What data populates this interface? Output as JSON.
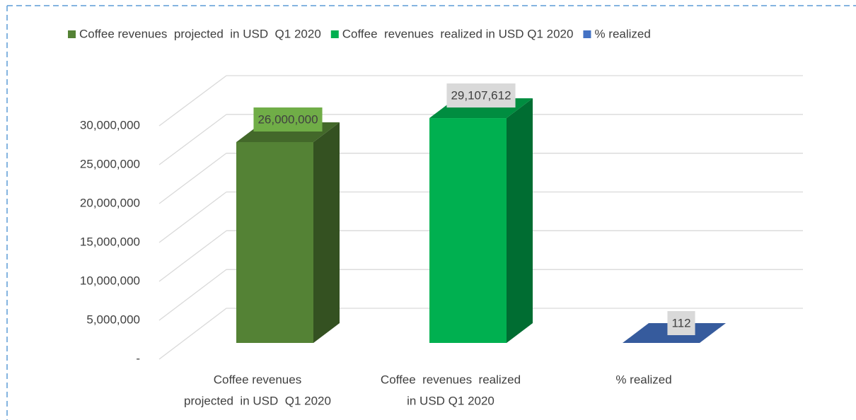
{
  "chart_data": {
    "type": "bar3d",
    "categories": [
      [
        "Coffee revenues",
        "projected  in USD  Q1 2020"
      ],
      [
        "Coffee  revenues  realized",
        "in USD Q1 2020"
      ],
      [
        "% realized"
      ]
    ],
    "series": [
      {
        "name": "Coffee revenues  projected  in USD  Q1 2020",
        "color": "#548235"
      },
      {
        "name": "Coffee  revenues  realized in USD Q1 2020",
        "color": "#00b050"
      },
      {
        "name": "% realized",
        "color": "#4472c4"
      }
    ],
    "values": [
      26000000,
      29107612,
      112
    ],
    "value_labels": [
      "26,000,000",
      "29,107,612",
      "112"
    ],
    "ylim": [
      0,
      30000000
    ],
    "yticks": [
      {
        "value": 0,
        "label": "-"
      },
      {
        "value": 5000000,
        "label": "5,000,000"
      },
      {
        "value": 10000000,
        "label": "10,000,000"
      },
      {
        "value": 15000000,
        "label": "15,000,000"
      },
      {
        "value": 20000000,
        "label": "20,000,000"
      },
      {
        "value": 25000000,
        "label": "25,000,000"
      },
      {
        "value": 30000000,
        "label": "30,000,000"
      }
    ],
    "grid": true
  }
}
